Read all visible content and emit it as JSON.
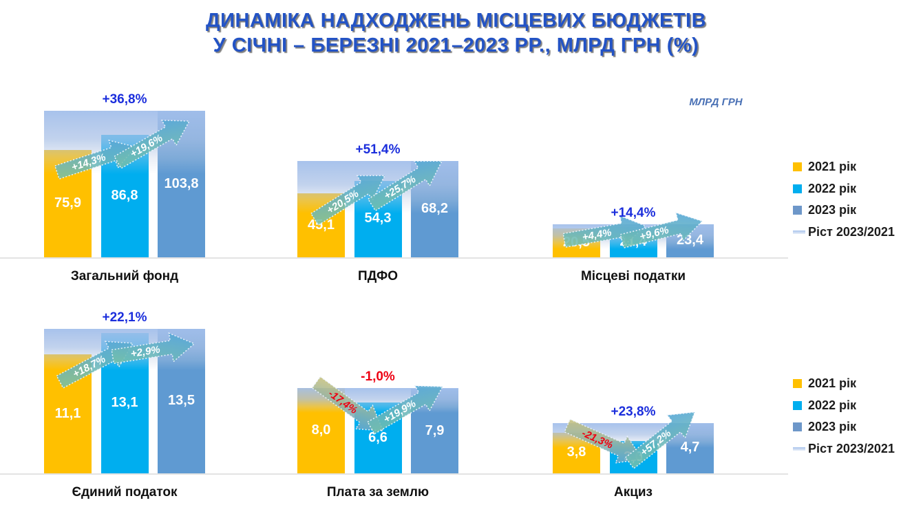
{
  "title": {
    "line1": "ДИНАМІКА НАДХОДЖЕНЬ МІСЦЕВИХ БЮДЖЕТІВ",
    "line2": "У СІЧНІ – БЕРЕЗНІ 2021–2023 РР., МЛРД ГРН (%)"
  },
  "axis_note": "МЛРД ГРН",
  "legend": {
    "items": [
      {
        "label": "2021 рік",
        "type": "square",
        "color": "#FFC000"
      },
      {
        "label": "2022 рік",
        "type": "square",
        "color": "#00AEEF"
      },
      {
        "label": "2023 рік",
        "type": "square",
        "color": "#6D97C9"
      },
      {
        "label": "Ріст 2023/2021",
        "type": "band",
        "color": "#A9C4EC"
      }
    ]
  },
  "colors": {
    "bar_2021": "#FFC000",
    "bar_2022": "#00AEEF",
    "bar_2023": "#5F9AD2",
    "growth_band": "#A3BFEB",
    "growth_positive": "#1B2EDC",
    "growth_negative": "#ED0012",
    "title": "#2353C5"
  },
  "chart_data": {
    "type": "bar",
    "title": "Динаміка надходжень місцевих бюджетів у січні – березні 2021–2023 рр.",
    "unit": "млрд грн",
    "series": [
      "2021 рік",
      "2022 рік",
      "2023 рік"
    ],
    "legend_position": "right",
    "grid": false,
    "groups": [
      {
        "label": "Загальний фонд",
        "values": [
          75.9,
          86.8,
          103.8
        ],
        "values_display": [
          "75,9",
          "86,8",
          "103,8"
        ],
        "growth_total": {
          "text": "+36,8%",
          "negative": false
        },
        "step_growth": [
          {
            "text": "+14,3%",
            "direction": "up"
          },
          {
            "text": "+19,6%",
            "direction": "up"
          }
        ]
      },
      {
        "label": "ПДФО",
        "values": [
          45.1,
          54.3,
          68.2
        ],
        "values_display": [
          "45,1",
          "54,3",
          "68,2"
        ],
        "growth_total": {
          "text": "+51,4%",
          "negative": false
        },
        "step_growth": [
          {
            "text": "+20,5%",
            "direction": "up"
          },
          {
            "text": "+25,7%",
            "direction": "up"
          }
        ]
      },
      {
        "label": "Місцеві податки",
        "values": [
          20.5,
          21.4,
          23.4
        ],
        "values_display": [
          "20,5",
          "21,4",
          "23,4"
        ],
        "growth_total": {
          "text": "+14,4%",
          "negative": false
        },
        "step_growth": [
          {
            "text": "+4,4%",
            "direction": "up"
          },
          {
            "text": "+9,6%",
            "direction": "up"
          }
        ]
      },
      {
        "label": "Єдиний податок",
        "values": [
          11.1,
          13.1,
          13.5
        ],
        "values_display": [
          "11,1",
          "13,1",
          "13,5"
        ],
        "growth_total": {
          "text": "+22,1%",
          "negative": false
        },
        "step_growth": [
          {
            "text": "+18,7%",
            "direction": "up"
          },
          {
            "text": "+2,9%",
            "direction": "up"
          }
        ]
      },
      {
        "label": "Плата за землю",
        "values": [
          8.0,
          6.6,
          7.9
        ],
        "values_display": [
          "8,0",
          "6,6",
          "7,9"
        ],
        "growth_total": {
          "text": "-1,0%",
          "negative": true
        },
        "step_growth": [
          {
            "text": "-17,4%",
            "direction": "down"
          },
          {
            "text": "+19,9%",
            "direction": "up"
          }
        ]
      },
      {
        "label": "Акциз",
        "values": [
          3.8,
          3.0,
          4.7
        ],
        "values_display": [
          "3,8",
          "3,0",
          "4,7"
        ],
        "growth_total": {
          "text": "+23,8%",
          "negative": false
        },
        "step_growth": [
          {
            "text": "-21,3%",
            "direction": "down"
          },
          {
            "text": "+57,2%",
            "direction": "up"
          }
        ]
      }
    ]
  }
}
